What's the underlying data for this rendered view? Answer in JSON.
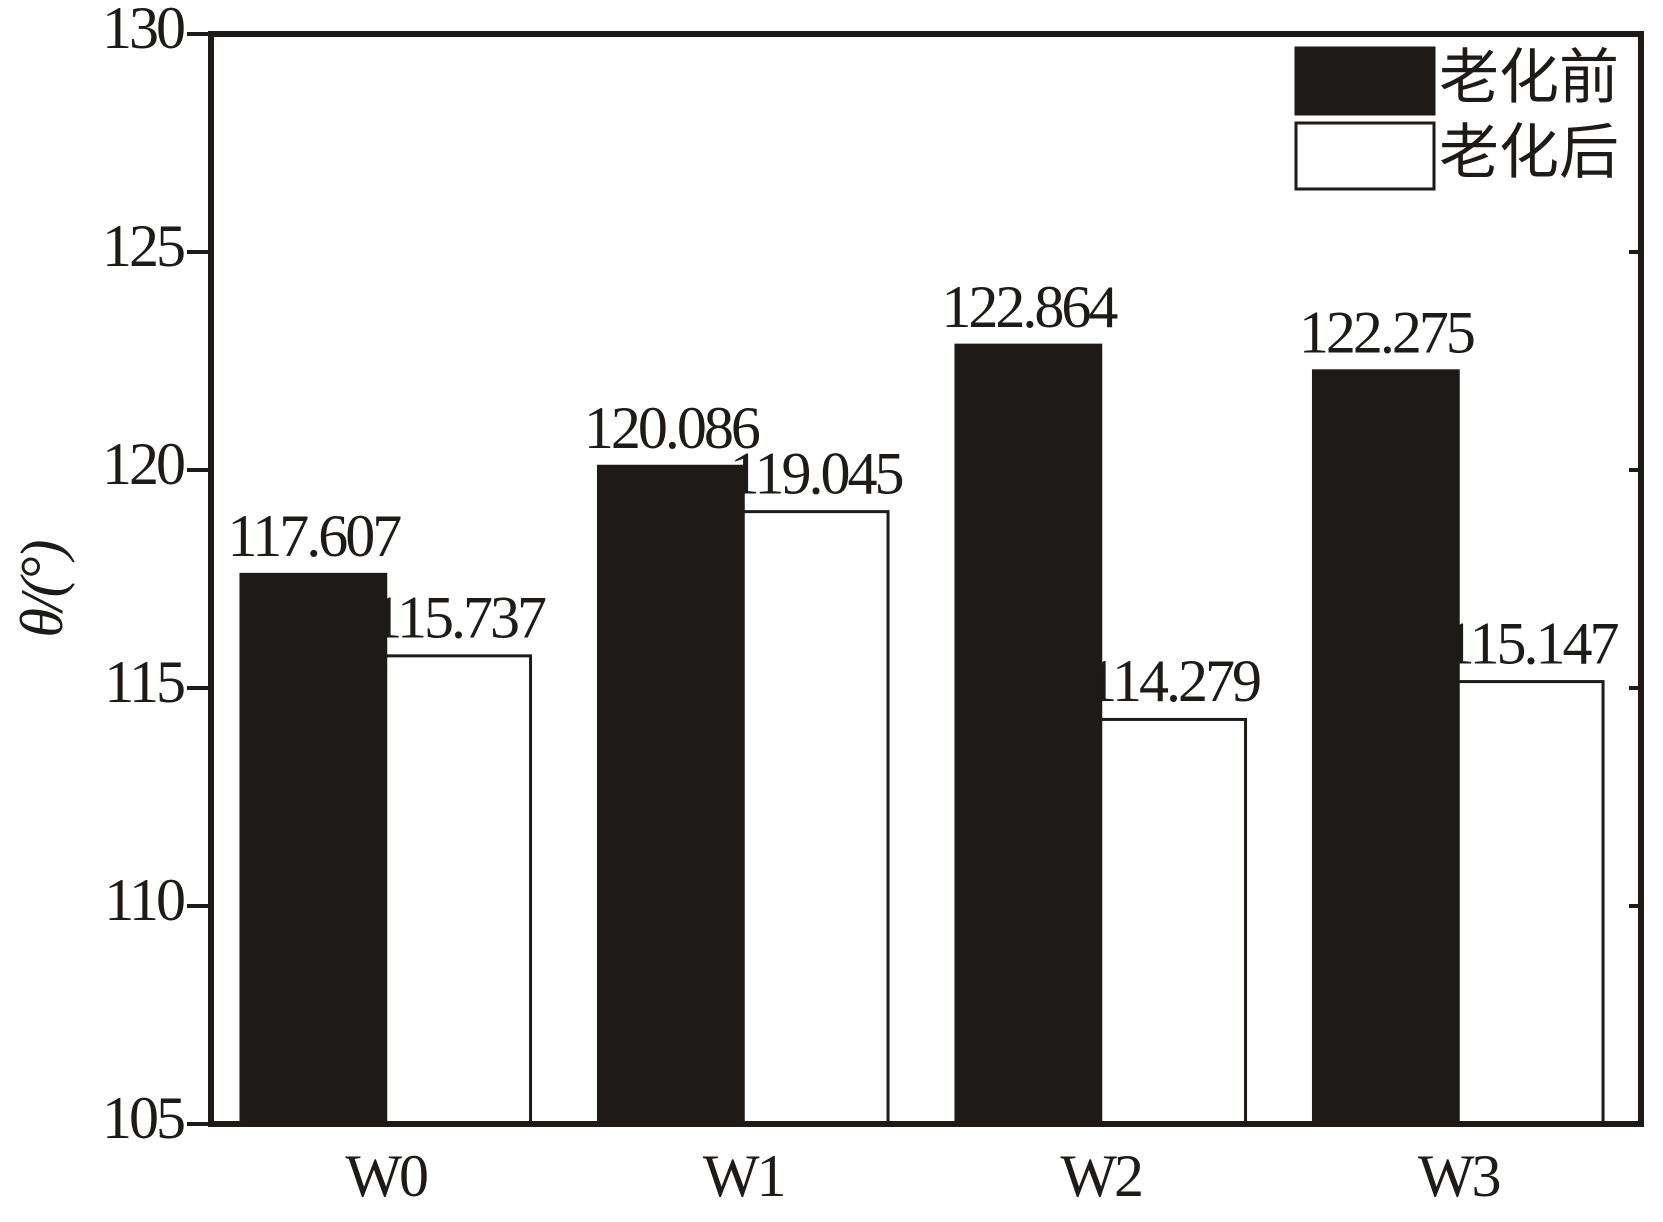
{
  "chart_data": {
    "type": "bar",
    "ylabel": "θ/(°)",
    "categories": [
      "W0",
      "W1",
      "W2",
      "W3"
    ],
    "series": [
      {
        "name": "老化前",
        "color": "#1d1a17",
        "values": [
          117.607,
          120.086,
          122.864,
          122.275
        ]
      },
      {
        "name": "老化后",
        "color": "#ffffff",
        "values": [
          115.737,
          119.045,
          114.279,
          115.147
        ]
      }
    ],
    "ylim": [
      105,
      130
    ],
    "yticks": [
      105,
      110,
      115,
      120,
      125,
      130
    ],
    "legend": "upper right"
  }
}
